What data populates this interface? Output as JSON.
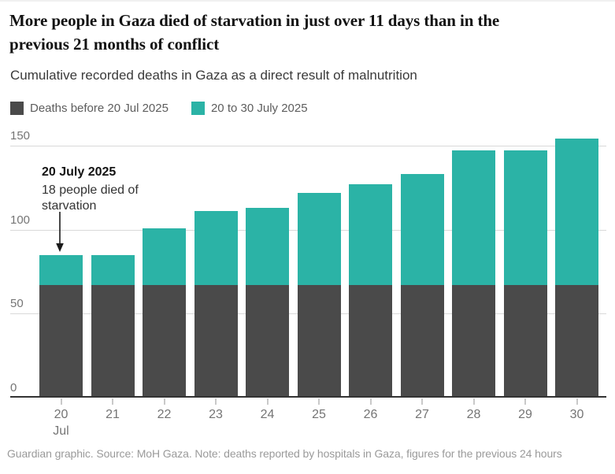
{
  "header": {
    "title_lines": [
      "More people in Gaza died of starvation in just over 11 days than in the",
      "previous 21 months of conflict"
    ],
    "subtitle": "Cumulative recorded deaths in Gaza as a direct result of malnutrition"
  },
  "chart_data": {
    "type": "bar",
    "stacked": true,
    "title": "More people in Gaza died of starvation in just over 11 days than in the previous 21 months of conflict",
    "subtitle": "Cumulative recorded deaths in Gaza as a direct result of malnutrition",
    "x": [
      "20",
      "21",
      "22",
      "23",
      "24",
      "25",
      "26",
      "27",
      "28",
      "29",
      "30"
    ],
    "x_first_sub_label": "Jul",
    "ylim": [
      0,
      150
    ],
    "yticks": [
      0,
      50,
      100,
      150
    ],
    "grid": true,
    "legend_position": "top",
    "series": [
      {
        "name": "Deaths before 20 Jul 2025",
        "color": "#4a4a4a",
        "values": [
          67,
          67,
          67,
          67,
          67,
          67,
          67,
          67,
          67,
          67,
          67
        ]
      },
      {
        "name": "20 to 30 July 2025",
        "color": "#2bb3a6",
        "values": [
          18,
          18,
          34,
          44,
          46,
          55,
          60,
          66,
          80,
          80,
          87
        ]
      }
    ],
    "totals": [
      85,
      85,
      101,
      111,
      113,
      122,
      127,
      133,
      147,
      147,
      154
    ],
    "annotation": {
      "title": "20 July 2025",
      "lines": [
        "18 people died of",
        "starvation"
      ]
    }
  },
  "colors": {
    "before_bar": "#4a4a4a",
    "after_bar": "#2bb3a6",
    "gridline": "#d9d9d9",
    "axis_line": "#333333",
    "axis_label": "#757575",
    "title_text": "#121212",
    "footer_text": "#9a9a9a"
  },
  "footer": {
    "note": "Guardian graphic. Source: MoH Gaza. Note: deaths reported by hospitals in Gaza, figures for the previous 24 hours"
  }
}
